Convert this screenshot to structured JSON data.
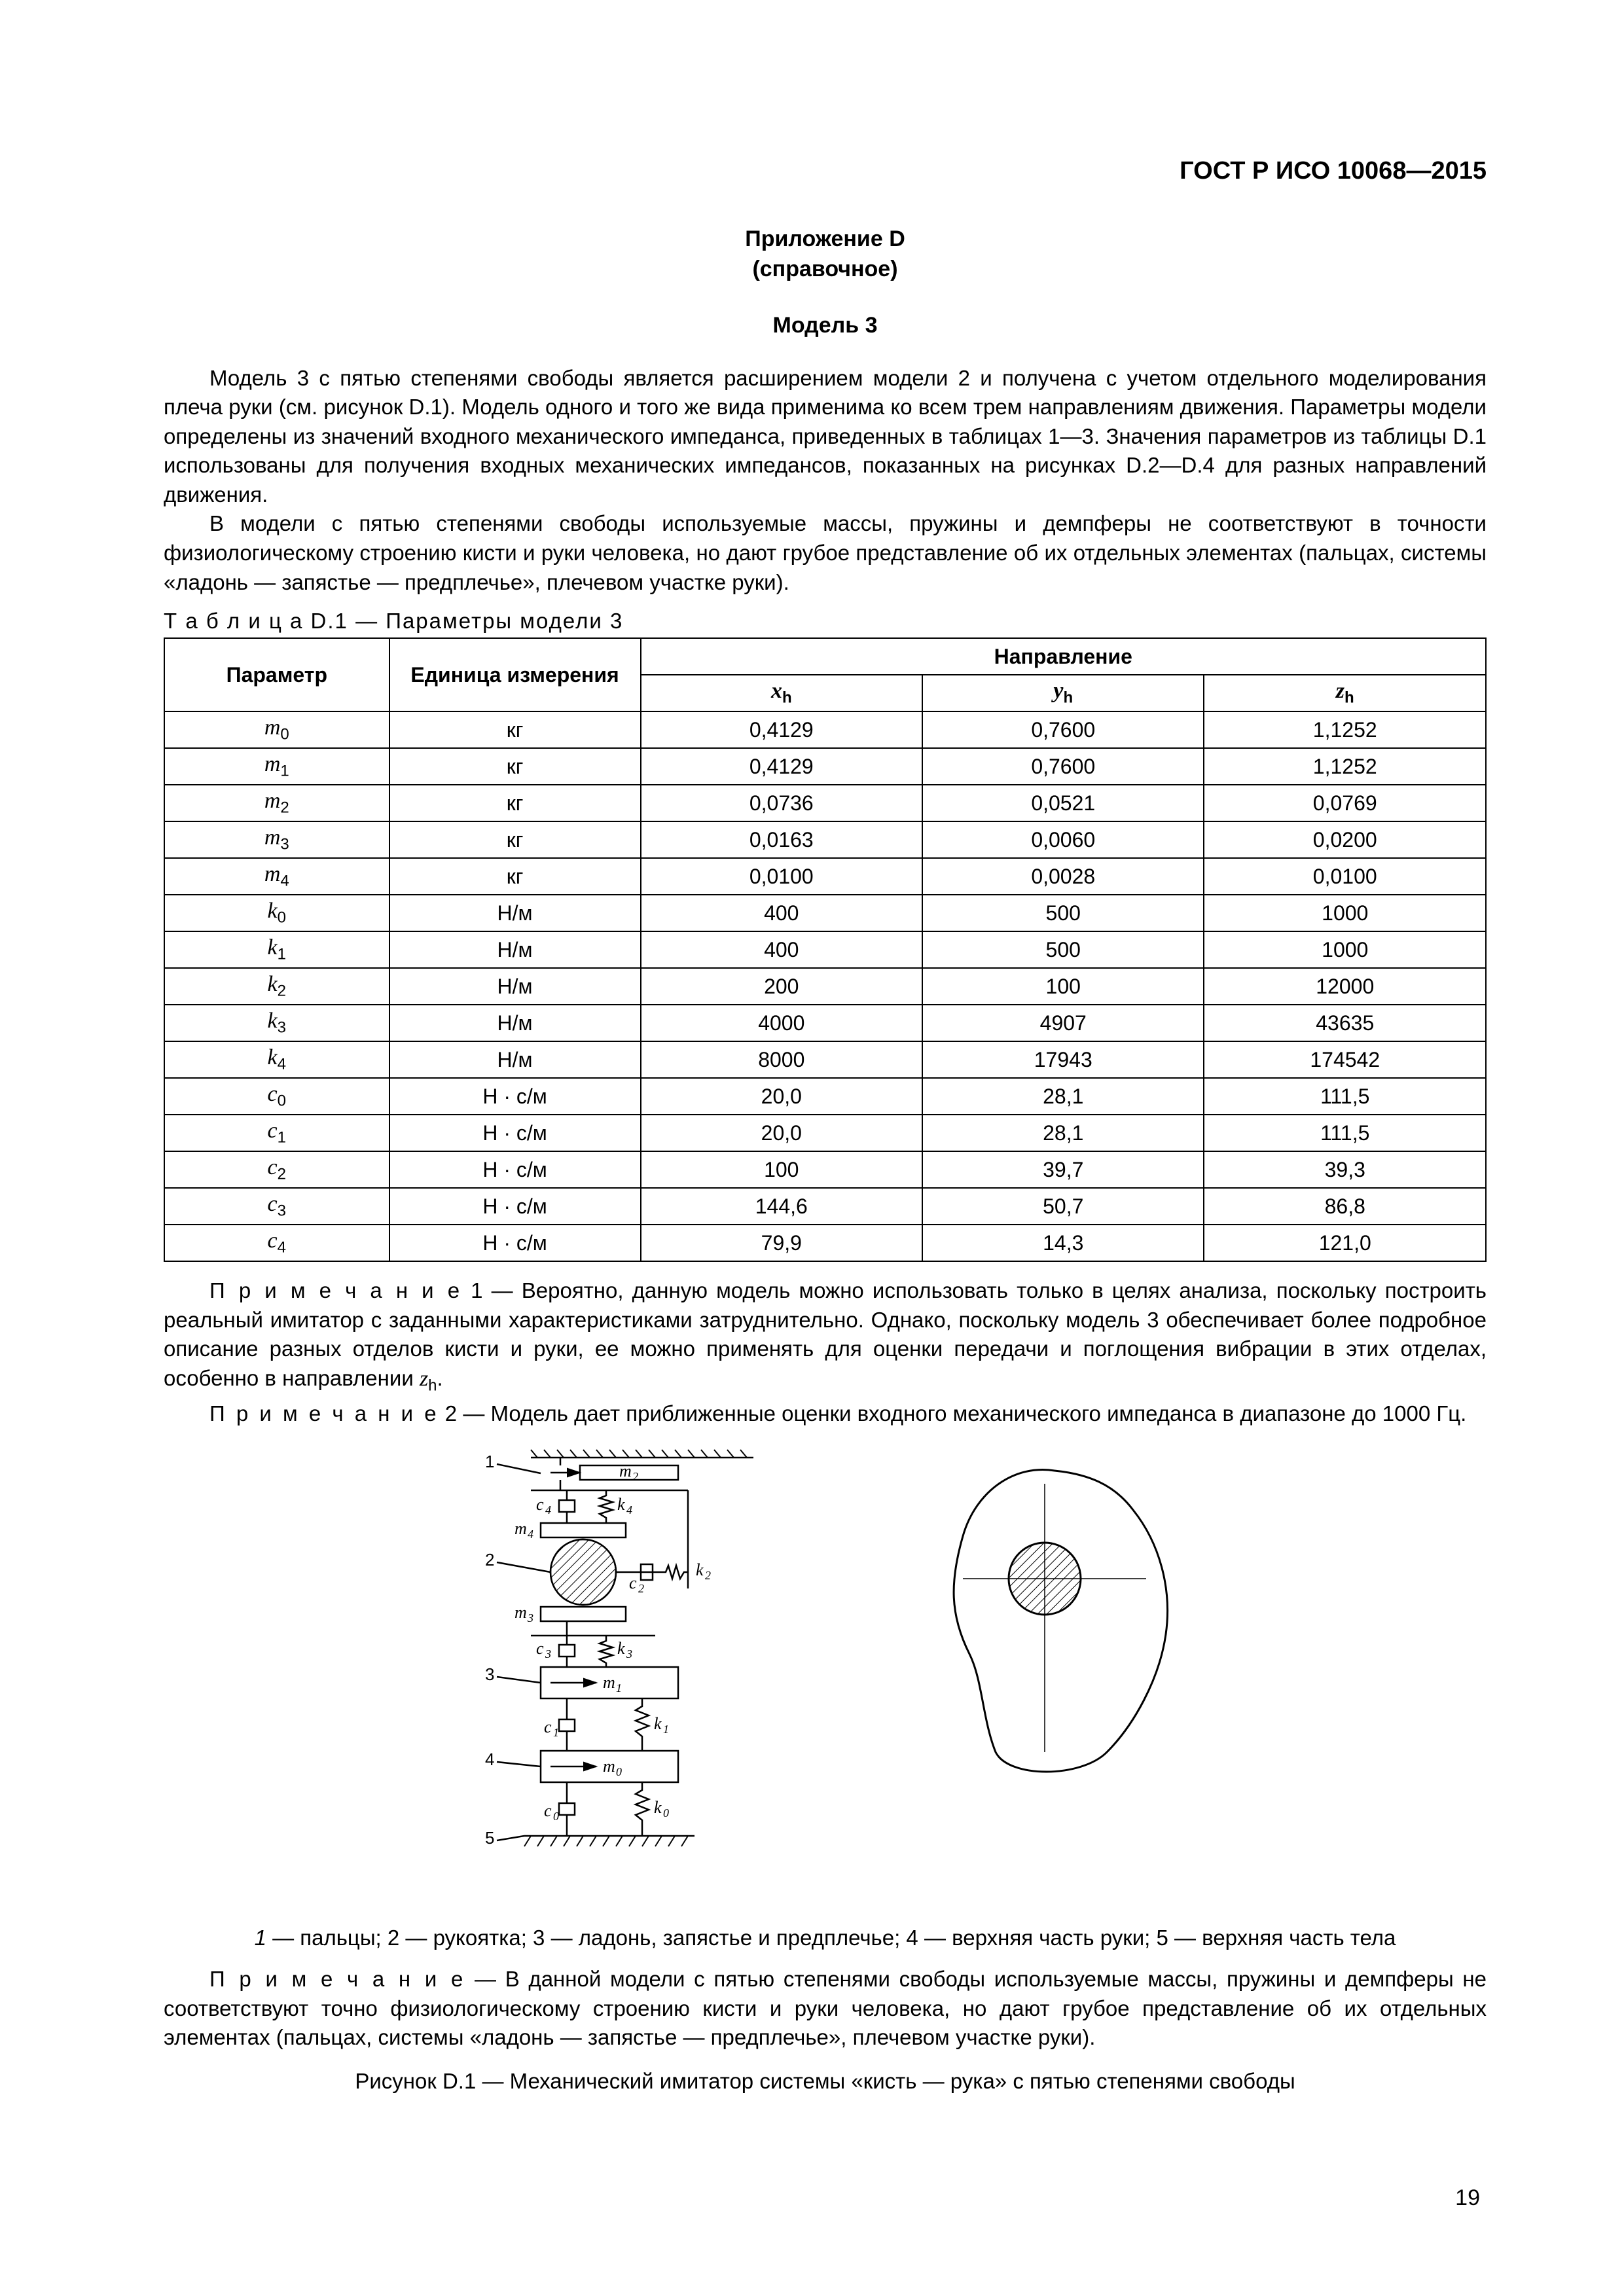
{
  "header": {
    "standard": "ГОСТ Р ИСО 10068—2015"
  },
  "titles": {
    "appendix": "Приложение D",
    "appendix_type": "(справочное)",
    "model": "Модель 3"
  },
  "paragraphs": {
    "p1": "Модель 3 с пятью степенями свободы является расширением модели 2 и получена с учетом отдельного моделирования плеча руки (см. рисунок D.1). Модель одного и того же вида применима ко всем трем направлениям движения. Параметры модели определены из значений входного механического импеданса, приведенных в таблицах 1—3. Значения параметров из таблицы D.1 использованы для получения входных механических импедансов, показанных на рисунках D.2—D.4 для разных направлений движения.",
    "p2": "В модели с пятью степенями свободы используемые массы, пружины и демпферы не соответствуют в точности физиологическому строению кисти и руки человека, но дают грубое представление об их отдельных элементах (пальцах, системы «ладонь — запястье — предплечье», плечевом участке руки)."
  },
  "table": {
    "caption_lead": "Т а б л и ц а",
    "caption_rest": "  D.1 — Параметры модели 3",
    "col_param": "Параметр",
    "col_unit": "Единица измерения",
    "col_dir": "Направление",
    "dir_x": "x",
    "dir_y": "y",
    "dir_z": "z",
    "dir_sub": "h",
    "rows": [
      {
        "p": "m",
        "s": "0",
        "u": "кг",
        "x": "0,4129",
        "y": "0,7600",
        "z": "1,1252"
      },
      {
        "p": "m",
        "s": "1",
        "u": "кг",
        "x": "0,4129",
        "y": "0,7600",
        "z": "1,1252"
      },
      {
        "p": "m",
        "s": "2",
        "u": "кг",
        "x": "0,0736",
        "y": "0,0521",
        "z": "0,0769"
      },
      {
        "p": "m",
        "s": "3",
        "u": "кг",
        "x": "0,0163",
        "y": "0,0060",
        "z": "0,0200"
      },
      {
        "p": "m",
        "s": "4",
        "u": "кг",
        "x": "0,0100",
        "y": "0,0028",
        "z": "0,0100"
      },
      {
        "p": "k",
        "s": "0",
        "u": "Н/м",
        "x": "400",
        "y": "500",
        "z": "1000"
      },
      {
        "p": "k",
        "s": "1",
        "u": "Н/м",
        "x": "400",
        "y": "500",
        "z": "1000"
      },
      {
        "p": "k",
        "s": "2",
        "u": "Н/м",
        "x": "200",
        "y": "100",
        "z": "12000"
      },
      {
        "p": "k",
        "s": "3",
        "u": "Н/м",
        "x": "4000",
        "y": "4907",
        "z": "43635"
      },
      {
        "p": "k",
        "s": "4",
        "u": "Н/м",
        "x": "8000",
        "y": "17943",
        "z": "174542"
      },
      {
        "p": "c",
        "s": "0",
        "u": "Н · с/м",
        "x": "20,0",
        "y": "28,1",
        "z": "111,5"
      },
      {
        "p": "c",
        "s": "1",
        "u": "Н · с/м",
        "x": "20,0",
        "y": "28,1",
        "z": "111,5"
      },
      {
        "p": "c",
        "s": "2",
        "u": "Н · с/м",
        "x": "100",
        "y": "39,7",
        "z": "39,3"
      },
      {
        "p": "c",
        "s": "3",
        "u": "Н · с/м",
        "x": "144,6",
        "y": "50,7",
        "z": "86,8"
      },
      {
        "p": "c",
        "s": "4",
        "u": "Н · с/м",
        "x": "79,9",
        "y": "14,3",
        "z": "121,0"
      }
    ]
  },
  "notes": {
    "lead1": "П р и м е ч а н и е",
    "n1_num": "  1 — ",
    "n1": "Вероятно, данную модель можно использовать только в целях  анализа, поскольку построить реальный имитатор с заданными характеристиками затруднительно. Однако, поскольку модель 3 обеспечивает более подробное описание разных отделов кисти и руки, ее можно применять для оценки передачи и поглощения вибрации в этих отделах, особенно в направлении ",
    "n1_tail_var": "z",
    "n1_tail_sub": "h",
    "n1_tail_dot": ".",
    "n2_num": "  2 — ",
    "n2": "Модель дает приближенные оценки входного механического импеданса в диапазоне до 1000 Гц.",
    "n3_dash": " — ",
    "n3": "В данной модели с пятью степенями свободы используемые массы, пружины и демпферы не соответствуют точно физиологическому строению кисти и руки человека, но дают грубое представление об их отдельных элементах (пальцах, системы «ладонь — запястье — предплечье», плечевом участке руки)."
  },
  "figure": {
    "labels": {
      "n1": "1",
      "n2": "2",
      "n3": "3",
      "n4": "4",
      "n5": "5",
      "m0": "m",
      "m1": "m",
      "m2": "m",
      "m3": "m",
      "m4": "m",
      "s0": "0",
      "s1": "1",
      "s2": "2",
      "s3": "3",
      "s4": "4",
      "c": "c",
      "k": "k"
    },
    "legend_lead": "1",
    "legend": " — пальцы; 2 — рукоятка; 3 — ладонь, запястье и предплечье; 4 — верхняя часть руки; 5 — верхняя часть тела",
    "caption": "Рисунок D.1 — Механический имитатор системы «кисть — рука» с пятью степенями свободы"
  },
  "page_number": "19",
  "colors": {
    "text": "#000000",
    "bg": "#ffffff",
    "hatched": "#000000"
  }
}
